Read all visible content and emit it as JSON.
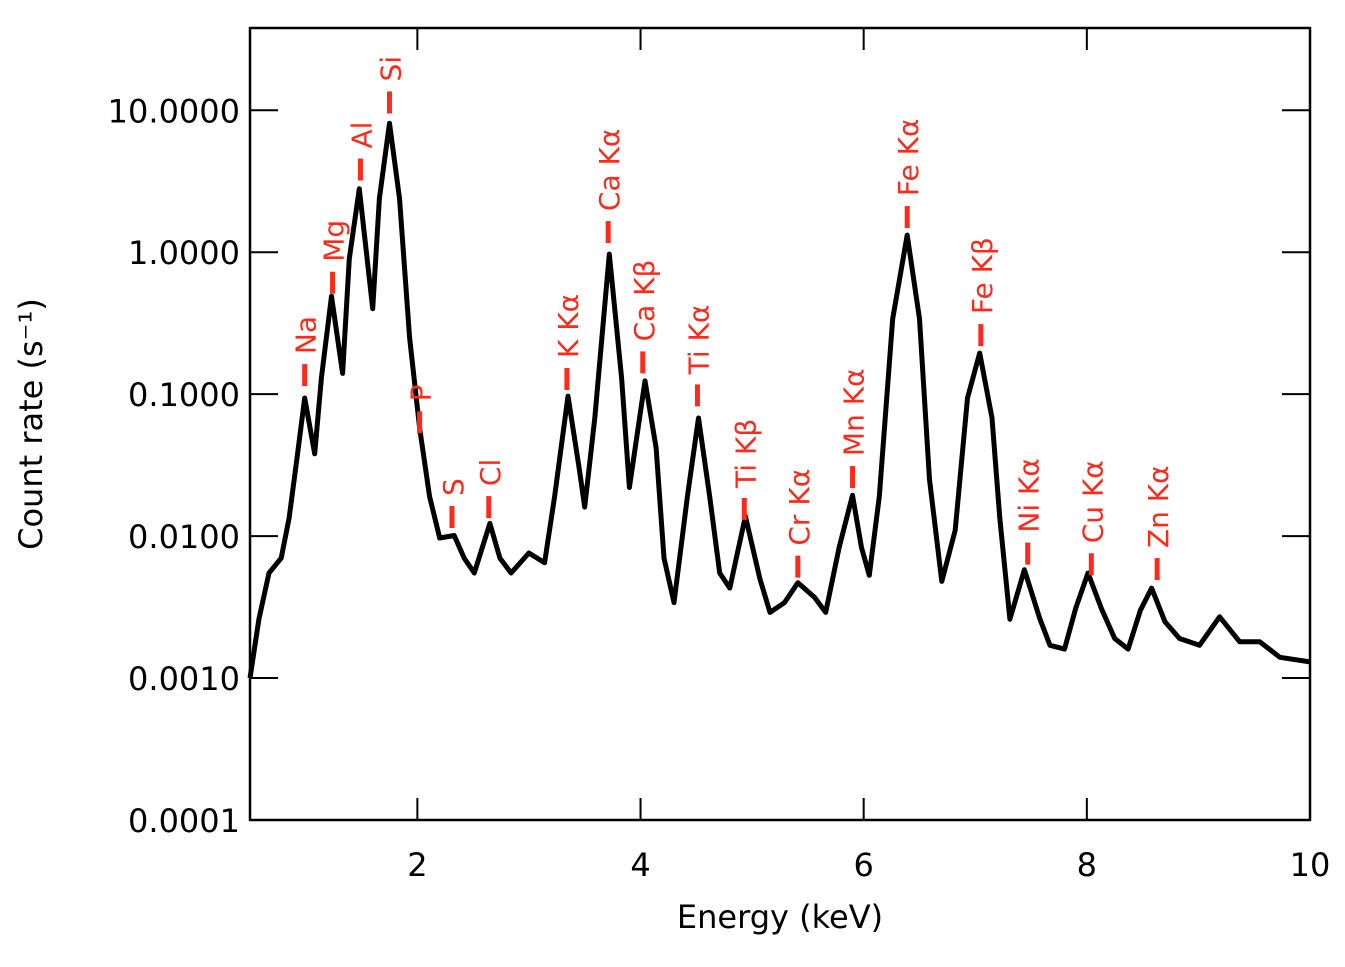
{
  "chart_data": {
    "type": "line",
    "xlabel": "Energy (keV)",
    "ylabel": "Count rate (s⁻¹)",
    "xlim": [
      0.5,
      10
    ],
    "ylim": [
      0.0001,
      38
    ],
    "ylog": true,
    "xticks": [
      2,
      4,
      6,
      8,
      10
    ],
    "yticks": [
      {
        "value": 0.0001,
        "label": "0.0001"
      },
      {
        "value": 0.001,
        "label": "0.0010"
      },
      {
        "value": 0.01,
        "label": "0.0100"
      },
      {
        "value": 0.1,
        "label": "0.1000"
      },
      {
        "value": 1,
        "label": "1.0000"
      },
      {
        "value": 10,
        "label": "10.0000"
      }
    ],
    "series": [
      {
        "color": "#000000",
        "x": [
          0.5,
          0.58,
          0.67,
          0.78,
          0.85,
          0.92,
          0.99,
          1.08,
          1.14,
          1.23,
          1.33,
          1.39,
          1.48,
          1.6,
          1.66,
          1.75,
          1.84,
          1.93,
          2.02,
          2.11,
          2.2,
          2.33,
          2.42,
          2.51,
          2.65,
          2.74,
          2.84,
          3.0,
          3.14,
          3.23,
          3.35,
          3.45,
          3.5,
          3.59,
          3.72,
          3.83,
          3.9,
          4.04,
          4.14,
          4.21,
          4.3,
          4.42,
          4.52,
          4.62,
          4.71,
          4.8,
          4.94,
          5.07,
          5.16,
          5.29,
          5.41,
          5.56,
          5.66,
          5.78,
          5.9,
          5.98,
          6.05,
          6.14,
          6.26,
          6.39,
          6.5,
          6.59,
          6.7,
          6.82,
          6.93,
          7.04,
          7.15,
          7.22,
          7.31,
          7.44,
          7.58,
          7.67,
          7.8,
          7.9,
          8.01,
          8.13,
          8.25,
          8.37,
          8.48,
          8.58,
          8.7,
          8.83,
          9.01,
          9.19,
          9.37,
          9.55,
          9.73,
          10.0
        ],
        "values": [
          0.001,
          0.0026,
          0.0055,
          0.007,
          0.0134,
          0.035,
          0.094,
          0.038,
          0.13,
          0.49,
          0.14,
          0.9,
          2.8,
          0.4,
          2.4,
          8.1,
          2.4,
          0.25,
          0.058,
          0.019,
          0.0097,
          0.0101,
          0.007,
          0.0055,
          0.0123,
          0.007,
          0.0055,
          0.0076,
          0.0065,
          0.019,
          0.097,
          0.03,
          0.016,
          0.068,
          0.97,
          0.13,
          0.022,
          0.124,
          0.042,
          0.007,
          0.0034,
          0.019,
          0.068,
          0.019,
          0.0055,
          0.0043,
          0.0138,
          0.005,
          0.0029,
          0.0034,
          0.0047,
          0.0037,
          0.0029,
          0.0083,
          0.0194,
          0.0083,
          0.0053,
          0.019,
          0.34,
          1.32,
          0.34,
          0.025,
          0.0048,
          0.011,
          0.094,
          0.195,
          0.068,
          0.0134,
          0.0026,
          0.0058,
          0.0026,
          0.0017,
          0.0016,
          0.0031,
          0.0055,
          0.0031,
          0.0019,
          0.0016,
          0.003,
          0.0043,
          0.0025,
          0.0019,
          0.0017,
          0.0027,
          0.0018,
          0.0018,
          0.0014,
          0.0013
        ]
      }
    ],
    "annotation_color": "#ff2a1a",
    "annotations": [
      {
        "text": "Na",
        "x": 0.99,
        "y": 0.114
      },
      {
        "text": "Mg",
        "x": 1.24,
        "y": 0.51
      },
      {
        "text": "Al",
        "x": 1.49,
        "y": 3.2
      },
      {
        "text": "Si",
        "x": 1.75,
        "y": 9.5
      },
      {
        "text": "P",
        "x": 2.02,
        "y": 0.053
      },
      {
        "text": "S",
        "x": 2.31,
        "y": 0.0114
      },
      {
        "text": "Cl",
        "x": 2.64,
        "y": 0.0134
      },
      {
        "text": "K Kα",
        "x": 3.34,
        "y": 0.107
      },
      {
        "text": "Ca Kα",
        "x": 3.71,
        "y": 1.16
      },
      {
        "text": "Ca Kβ",
        "x": 4.02,
        "y": 0.14
      },
      {
        "text": "Ti Kα",
        "x": 4.51,
        "y": 0.082
      },
      {
        "text": "Ti Kβ",
        "x": 4.93,
        "y": 0.013
      },
      {
        "text": "Cr Kα",
        "x": 5.41,
        "y": 0.0051
      },
      {
        "text": "Mn Kα",
        "x": 5.9,
        "y": 0.0218
      },
      {
        "text": "Fe Kα",
        "x": 6.39,
        "y": 1.48
      },
      {
        "text": "Fe Kβ",
        "x": 7.05,
        "y": 0.218
      },
      {
        "text": "Ni Kα",
        "x": 7.47,
        "y": 0.0063
      },
      {
        "text": "Cu Kα",
        "x": 8.04,
        "y": 0.0053
      },
      {
        "text": "Zn Kα",
        "x": 8.63,
        "y": 0.0049
      }
    ]
  }
}
